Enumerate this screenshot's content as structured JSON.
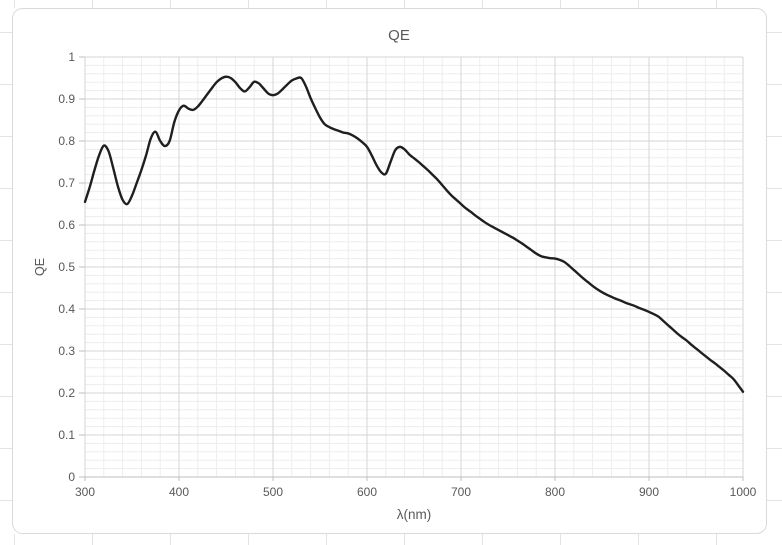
{
  "chart_data": {
    "type": "line",
    "title": "QE",
    "xlabel": "λ(nm)",
    "ylabel": "QE",
    "xlim": [
      300,
      1000
    ],
    "ylim": [
      0,
      1
    ],
    "x_major_step": 100,
    "x_minor_step": 20,
    "y_major_step": 0.1,
    "y_minor_step": 0.02,
    "grid": true,
    "legend_position": "none",
    "x_tick_labels": [
      "300",
      "400",
      "500",
      "600",
      "700",
      "800",
      "900",
      "1000"
    ],
    "y_tick_labels": [
      "0",
      "0.1",
      "0.2",
      "0.3",
      "0.4",
      "0.5",
      "0.6",
      "0.7",
      "0.8",
      "0.9",
      "1"
    ],
    "series": [
      {
        "name": "QE",
        "color": "#1f1f1f",
        "x": [
          300,
          305,
          310,
          315,
          320,
          325,
          330,
          335,
          340,
          345,
          350,
          355,
          360,
          365,
          370,
          375,
          380,
          385,
          390,
          395,
          400,
          405,
          410,
          415,
          420,
          425,
          430,
          435,
          440,
          445,
          450,
          455,
          460,
          465,
          470,
          475,
          480,
          485,
          490,
          495,
          500,
          505,
          510,
          515,
          520,
          525,
          530,
          535,
          540,
          545,
          550,
          555,
          560,
          565,
          570,
          575,
          580,
          585,
          590,
          595,
          600,
          605,
          610,
          615,
          620,
          625,
          630,
          635,
          640,
          645,
          650,
          655,
          660,
          665,
          670,
          675,
          680,
          685,
          690,
          695,
          700,
          705,
          710,
          715,
          720,
          725,
          730,
          735,
          740,
          745,
          750,
          755,
          760,
          765,
          770,
          775,
          780,
          785,
          790,
          795,
          800,
          805,
          810,
          815,
          820,
          825,
          830,
          835,
          840,
          845,
          850,
          855,
          860,
          865,
          870,
          875,
          880,
          885,
          890,
          895,
          900,
          905,
          910,
          915,
          920,
          925,
          930,
          935,
          940,
          945,
          950,
          955,
          960,
          965,
          970,
          975,
          980,
          985,
          990,
          995,
          1000
        ],
        "y": [
          0.655,
          0.69,
          0.73,
          0.766,
          0.789,
          0.776,
          0.736,
          0.692,
          0.66,
          0.65,
          0.67,
          0.7,
          0.731,
          0.766,
          0.806,
          0.822,
          0.8,
          0.788,
          0.8,
          0.845,
          0.873,
          0.884,
          0.877,
          0.874,
          0.882,
          0.896,
          0.911,
          0.926,
          0.94,
          0.949,
          0.953,
          0.95,
          0.94,
          0.926,
          0.918,
          0.928,
          0.941,
          0.937,
          0.925,
          0.913,
          0.909,
          0.913,
          0.923,
          0.934,
          0.944,
          0.949,
          0.95,
          0.93,
          0.902,
          0.878,
          0.856,
          0.84,
          0.833,
          0.828,
          0.824,
          0.82,
          0.818,
          0.813,
          0.806,
          0.797,
          0.786,
          0.766,
          0.743,
          0.726,
          0.722,
          0.75,
          0.778,
          0.786,
          0.78,
          0.768,
          0.759,
          0.75,
          0.74,
          0.73,
          0.719,
          0.708,
          0.695,
          0.682,
          0.67,
          0.66,
          0.65,
          0.64,
          0.632,
          0.623,
          0.615,
          0.607,
          0.6,
          0.594,
          0.588,
          0.582,
          0.576,
          0.57,
          0.563,
          0.556,
          0.548,
          0.54,
          0.532,
          0.526,
          0.523,
          0.521,
          0.52,
          0.517,
          0.512,
          0.503,
          0.493,
          0.483,
          0.473,
          0.464,
          0.455,
          0.447,
          0.44,
          0.434,
          0.429,
          0.424,
          0.42,
          0.415,
          0.411,
          0.407,
          0.402,
          0.398,
          0.393,
          0.388,
          0.382,
          0.372,
          0.362,
          0.352,
          0.342,
          0.333,
          0.325,
          0.315,
          0.306,
          0.297,
          0.288,
          0.279,
          0.271,
          0.262,
          0.253,
          0.243,
          0.233,
          0.218,
          0.203
        ]
      }
    ]
  },
  "colors": {
    "background": "#ffffff",
    "chart_border": "#d9d9d9",
    "sheet_gridline": "#e3e3e3",
    "major_grid": "#d6d6d6",
    "minor_grid": "#ededed",
    "axis_line": "#bfbfbf",
    "tick_mark": "#bfbfbf",
    "label_text": "#595959",
    "line": "#1f1f1f"
  }
}
